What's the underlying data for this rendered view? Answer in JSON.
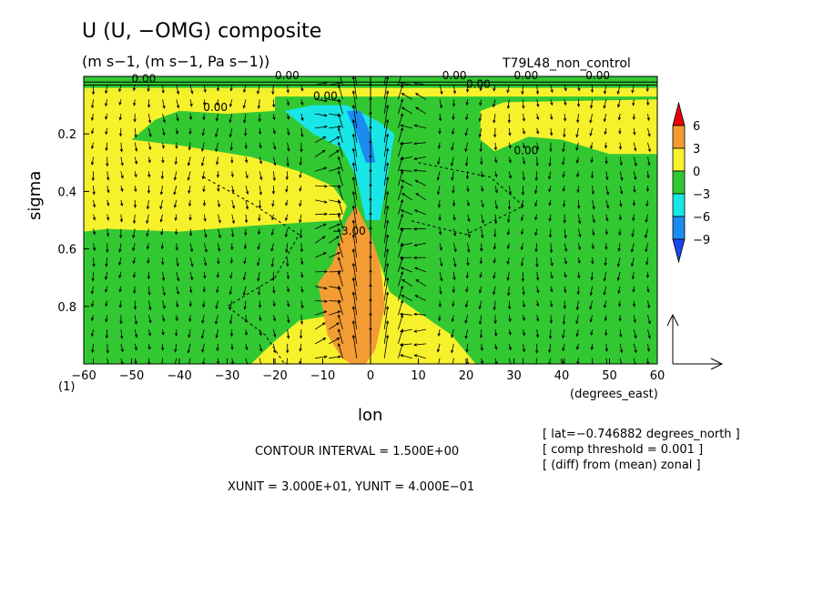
{
  "header": {
    "title": "U (U, −OMG) composite",
    "subtitle": "(m s−1, (m s−1, Pa s−1))",
    "run_name": "T79L48_non_control"
  },
  "axes": {
    "xlabel": "lon",
    "xunits": "(degrees_east)",
    "ylabel": "sigma",
    "index_label": "(1)",
    "x_ticks": [
      "−60",
      "−50",
      "−40",
      "−30",
      "−20",
      "−10",
      "0",
      "10",
      "20",
      "30",
      "40",
      "50",
      "60"
    ],
    "y_ticks": [
      "0.2",
      "0.4",
      "0.6",
      "0.8"
    ]
  },
  "info": {
    "contour_interval": "CONTOUR INTERVAL = 1.500E+00",
    "units": "XUNIT = 3.000E+01, YUNIT = 4.000E−01",
    "lat_line": "[ lat=−0.746882 degrees_north ]",
    "threshold_line": "[ comp threshold = 0.001 ]",
    "diff_line": "[ (diff) from (mean) zonal ]"
  },
  "colorbar": {
    "labels": [
      "6",
      "3",
      "0",
      "−3",
      "−6",
      "−9"
    ],
    "colors": [
      "#e8000b",
      "#f39c34",
      "#f7f12c",
      "#32c832",
      "#19e6e6",
      "#1a8cf0",
      "#1a46f0"
    ]
  },
  "contour_labels": [
    "0.00",
    "0.00",
    "0.00",
    "0.00",
    "0.00",
    "0.00",
    "0.00",
    "0.00",
    "0.00",
    "−3.00"
  ],
  "chart_data": {
    "type": "heatmap",
    "title": "U (U, −OMG) composite",
    "subtitle": "(m s−1, (m s−1, Pa s−1))",
    "xlabel": "lon",
    "ylabel": "sigma",
    "xlim": [
      -60,
      60
    ],
    "ylim": [
      1.0,
      0.0
    ],
    "y_inverted": true,
    "contour_interval": 1.5,
    "colorbar_levels": [
      -9,
      -6,
      -3,
      0,
      3,
      6
    ],
    "regions": [
      {
        "name": "upper-band",
        "value_range": [
          -3,
          0
        ],
        "sigma": [
          0.0,
          0.03
        ]
      },
      {
        "name": "western-positive-upper",
        "value_range": [
          0,
          3
        ],
        "lon": [
          -60,
          -20
        ],
        "sigma": [
          0.05,
          0.6
        ]
      },
      {
        "name": "eastern-positive-upper",
        "value_range": [
          0,
          3
        ],
        "lon": [
          23,
          60
        ],
        "sigma": [
          0.08,
          0.27
        ]
      },
      {
        "name": "central-negative",
        "value_range": [
          -3,
          0
        ],
        "lon": [
          -45,
          40
        ],
        "sigma": [
          0.08,
          0.4
        ]
      },
      {
        "name": "cyan-core",
        "value_range": [
          -6,
          -3
        ],
        "lon": [
          -18,
          5
        ],
        "sigma": [
          0.1,
          0.5
        ]
      },
      {
        "name": "orange-core",
        "value_range": [
          3,
          6
        ],
        "lon": [
          -11,
          3
        ],
        "sigma": [
          0.45,
          1.0
        ]
      },
      {
        "name": "lower-negative",
        "value_range": [
          -3,
          0
        ],
        "lon": [
          -60,
          60
        ],
        "sigma": [
          0.5,
          1.0
        ]
      }
    ],
    "vectors": {
      "description": "wind vectors (U, −OMG)",
      "xunit": 30.0,
      "yunit": 0.4
    }
  }
}
